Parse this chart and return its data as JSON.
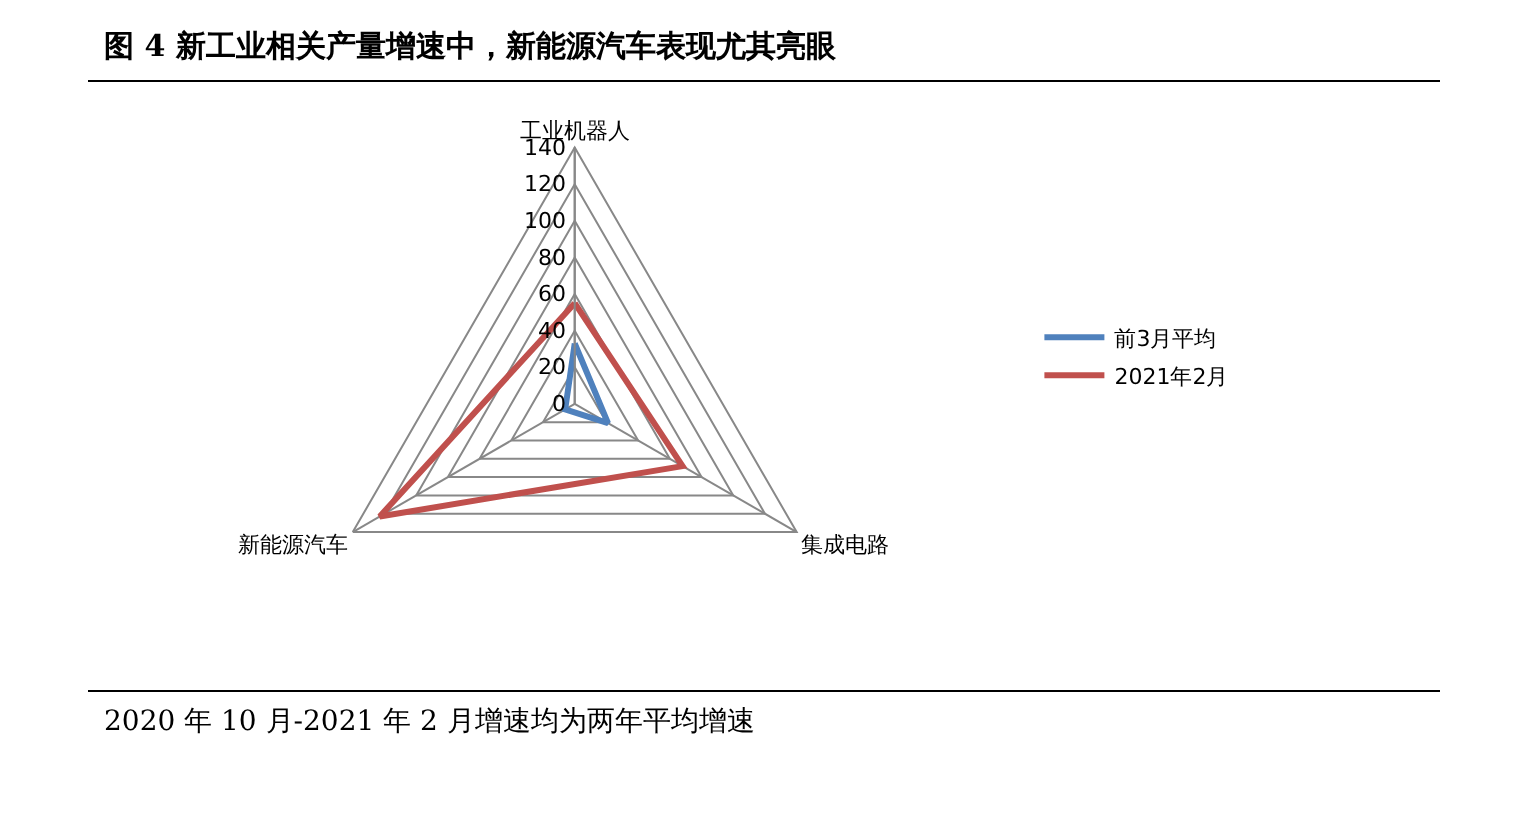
{
  "chart_data": {
    "type": "radar",
    "title": "图 4  新工业相关产量增速中，新能源汽车表现尤其亮眼",
    "categories": [
      "工业机器人",
      "集成电路",
      "新能源汽车"
    ],
    "series": [
      {
        "name": "前3月平均",
        "color": "#4f81bd",
        "values": [
          33,
          21,
          6
        ]
      },
      {
        "name": "2021年2月",
        "color": "#c0504d",
        "values": [
          55,
          68,
          123
        ]
      }
    ],
    "ylim": [
      0,
      140
    ],
    "yticks": [
      0,
      20,
      40,
      60,
      80,
      100,
      120,
      140
    ],
    "grid": true,
    "legend": "right",
    "marker": "none",
    "line_style": "solid",
    "annotations": [
      "2020 年 10 月-2021 年 2 月增速均为两年平均增速"
    ]
  }
}
